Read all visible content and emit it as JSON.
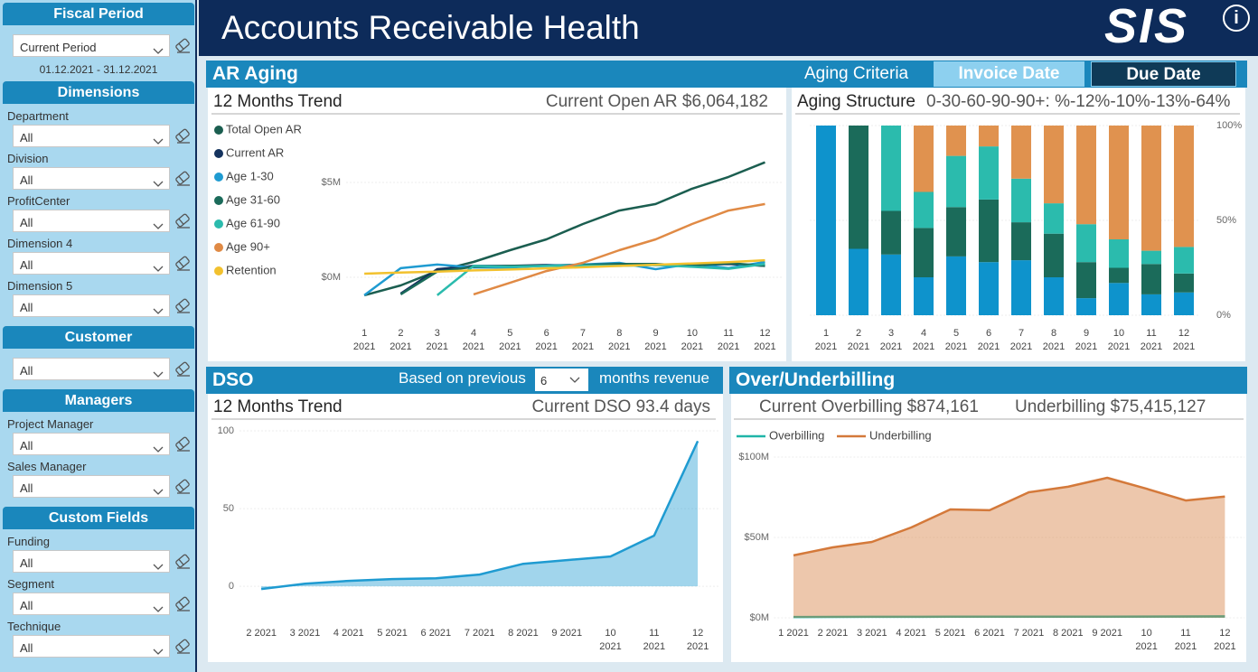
{
  "header": {
    "title": "Accounts Receivable Health",
    "logo": "SIS",
    "info": "i"
  },
  "sidebar": {
    "fiscal_period": {
      "title": "Fiscal Period",
      "selection": "Current Period",
      "range": "01.12.2021 - 31.12.2021"
    },
    "dimensions": {
      "title": "Dimensions",
      "filters": [
        {
          "label": "Department",
          "value": "All"
        },
        {
          "label": "Division",
          "value": "All"
        },
        {
          "label": "ProfitCenter",
          "value": "All"
        },
        {
          "label": "Dimension 4",
          "value": "All"
        },
        {
          "label": "Dimension 5",
          "value": "All"
        }
      ]
    },
    "customer": {
      "title": "Customer",
      "filters": [
        {
          "value": "All"
        }
      ]
    },
    "managers": {
      "title": "Managers",
      "filters": [
        {
          "label": "Project Manager",
          "value": "All"
        },
        {
          "label": "Sales Manager",
          "value": "All"
        }
      ]
    },
    "custom_fields": {
      "title": "Custom Fields",
      "filters": [
        {
          "label": "Funding",
          "value": "All"
        },
        {
          "label": "Segment",
          "value": "All"
        },
        {
          "label": "Technique",
          "value": "All"
        }
      ]
    }
  },
  "ar_aging": {
    "title": "AR Aging",
    "criteria_label": "Aging Criteria",
    "options": [
      "Invoice Date",
      "Due Date"
    ],
    "selected_index": 1
  },
  "dso": {
    "title": "DSO",
    "prefix": "Based on previous",
    "months": "6",
    "suffix": "months revenue"
  },
  "billing": {
    "title": "Over/Underbilling"
  },
  "chart_data": [
    {
      "type": "line",
      "title": "12 Months Trend",
      "subtitle": "Current Open AR $6,064,182",
      "categories": [
        "1 2021",
        "2 2021",
        "3 2021",
        "4 2021",
        "5 2021",
        "6 2021",
        "7 2021",
        "8 2021",
        "9 2021",
        "10 2021",
        "11 2021",
        "12 2021"
      ],
      "ylim": [
        -2000000,
        8000000
      ],
      "yticks": [
        {
          "value": 0,
          "label": "$0M"
        },
        {
          "value": 5000000,
          "label": "$5M"
        }
      ],
      "grid": true,
      "legend": "top-left",
      "series": [
        {
          "name": "Total Open AR",
          "color": "#1b5e50",
          "values": [
            -950000,
            -430000,
            330000,
            810000,
            1430000,
            2000000,
            2810000,
            3520000,
            3860000,
            4670000,
            5290000,
            6064182
          ]
        },
        {
          "name": "Current AR",
          "color": "#14335e",
          "values": [
            null,
            -860000,
            430000,
            600000,
            600000,
            650000,
            600000,
            700000,
            650000,
            650000,
            700000,
            600000
          ]
        },
        {
          "name": "Age 1-30",
          "color": "#1f9bd1",
          "values": [
            -950000,
            480000,
            670000,
            520000,
            520000,
            620000,
            670000,
            760000,
            430000,
            710000,
            480000,
            810000
          ]
        },
        {
          "name": "Age 31-60",
          "color": "#1b6b5a",
          "values": [
            null,
            -900000,
            300000,
            550000,
            600000,
            600000,
            650000,
            700000,
            700000,
            600000,
            750000,
            600000
          ]
        },
        {
          "name": "Age 61-90",
          "color": "#2bbbad",
          "values": [
            null,
            null,
            -950000,
            600000,
            550000,
            600000,
            620000,
            600000,
            650000,
            550000,
            450000,
            700000
          ]
        },
        {
          "name": "Age 90+",
          "color": "#e08a45",
          "values": [
            null,
            null,
            null,
            -900000,
            -290000,
            330000,
            760000,
            1430000,
            2000000,
            2810000,
            3520000,
            3860000
          ]
        },
        {
          "name": "Retention",
          "color": "#f2c12e",
          "values": [
            190000,
            250000,
            300000,
            360000,
            410000,
            470000,
            530000,
            600000,
            660000,
            730000,
            800000,
            900000
          ]
        }
      ]
    },
    {
      "type": "bar",
      "stacked": true,
      "title": "Aging Structure",
      "subtitle": "0-30-60-90-90+:  %-12%-10%-13%-64%",
      "categories": [
        "1 2021",
        "2 2021",
        "3 2021",
        "4 2021",
        "5 2021",
        "6 2021",
        "7 2021",
        "8 2021",
        "9 2021",
        "10 2021",
        "11 2021",
        "12 2021"
      ],
      "ylim": [
        0,
        100
      ],
      "yticks": [
        {
          "value": 0,
          "label": "0%"
        },
        {
          "value": 50,
          "label": "50%"
        },
        {
          "value": 100,
          "label": "100%"
        }
      ],
      "grid": true,
      "series": [
        {
          "color": "#0e93cc",
          "values": [
            100,
            35,
            32,
            20,
            31,
            28,
            29,
            20,
            9,
            17,
            11,
            12
          ]
        },
        {
          "color": "#1b6b5a",
          "values": [
            0,
            65,
            23,
            26,
            26,
            33,
            20,
            23,
            19,
            8,
            16,
            10
          ]
        },
        {
          "color": "#2bbbad",
          "values": [
            0,
            0,
            45,
            19,
            27,
            28,
            23,
            16,
            20,
            15,
            7,
            14
          ]
        },
        {
          "color": "#e0924f",
          "values": [
            0,
            0,
            0,
            35,
            16,
            11,
            28,
            41,
            52,
            60,
            66,
            64
          ]
        }
      ]
    },
    {
      "type": "area",
      "title": "12 Months Trend",
      "subtitle": "Current DSO 93.4 days",
      "categories": [
        "2 2021",
        "3 2021",
        "4 2021",
        "5 2021",
        "6 2021",
        "7 2021",
        "8 2021",
        "9 2021",
        "10 2021",
        "11 2021",
        "12 2021"
      ],
      "ylim": [
        -15,
        100
      ],
      "yticks": [
        0,
        50,
        100
      ],
      "grid": true,
      "color": "#1f9bd1",
      "values": [
        -1.7,
        1.7,
        3.5,
        4.7,
        5.2,
        7.6,
        14.5,
        16.9,
        19.2,
        32.6,
        93.4
      ]
    },
    {
      "type": "area",
      "annotations": [
        "Current Overbilling $874,161",
        "Underbilling $75,415,127"
      ],
      "categories": [
        "1 2021",
        "2 2021",
        "3 2021",
        "4 2021",
        "5 2021",
        "6 2021",
        "7 2021",
        "8 2021",
        "9 2021",
        "10 2021",
        "11 2021",
        "12 2021"
      ],
      "ylim": [
        0,
        100000000
      ],
      "yticks": [
        {
          "value": 0,
          "label": "$0M"
        },
        {
          "value": 50000000,
          "label": "$50M"
        },
        {
          "value": 100000000,
          "label": "$100M"
        }
      ],
      "grid": true,
      "legend": "top-left",
      "series": [
        {
          "name": "Overbilling",
          "color": "#1fb5a8",
          "values": [
            500000,
            550000,
            600000,
            620000,
            650000,
            680000,
            700000,
            720000,
            750000,
            800000,
            830000,
            874161
          ]
        },
        {
          "name": "Underbilling",
          "color": "#d4793a",
          "values": [
            38800000,
            43800000,
            47200000,
            56200000,
            67400000,
            66900000,
            78100000,
            81500000,
            87100000,
            80300000,
            73000000,
            75415127
          ]
        }
      ]
    }
  ]
}
